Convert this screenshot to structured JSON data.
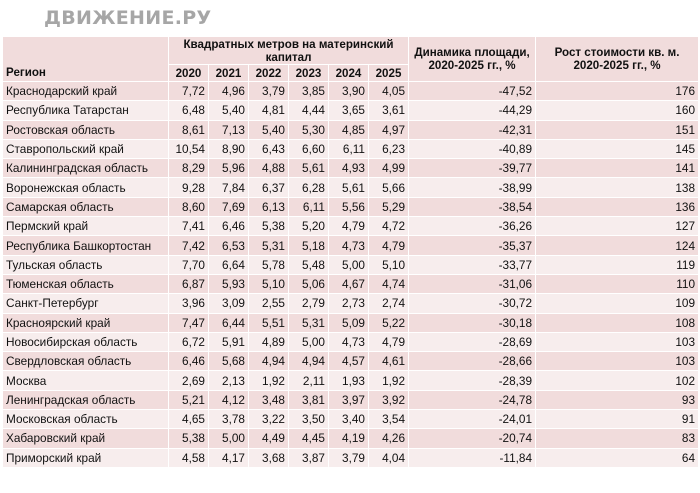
{
  "logo": "ДВИЖЕНИЕ.РУ",
  "table": {
    "headers": {
      "region": "Регион",
      "group": "Квадратных метров на материнский капитал",
      "years": [
        "2020",
        "2021",
        "2022",
        "2023",
        "2024",
        "2025"
      ],
      "dynamics": "Динамика площади, 2020-2025 гг., %",
      "growth": "Рост стоимости кв. м. 2020-2025 гг., %"
    },
    "rows": [
      {
        "region": "Краснодарский край",
        "values": [
          "7,72",
          "4,96",
          "3,79",
          "3,85",
          "3,90",
          "4,05"
        ],
        "dynamics": "-47,52",
        "growth": "176"
      },
      {
        "region": "Республика Татарстан",
        "values": [
          "6,48",
          "5,40",
          "4,81",
          "4,44",
          "3,65",
          "3,61"
        ],
        "dynamics": "-44,29",
        "growth": "160"
      },
      {
        "region": "Ростовская область",
        "values": [
          "8,61",
          "7,13",
          "5,40",
          "5,30",
          "4,85",
          "4,97"
        ],
        "dynamics": "-42,31",
        "growth": "151"
      },
      {
        "region": "Ставропольский край",
        "values": [
          "10,54",
          "8,90",
          "6,43",
          "6,60",
          "6,11",
          "6,23"
        ],
        "dynamics": "-40,89",
        "growth": "145"
      },
      {
        "region": "Калининградская область",
        "values": [
          "8,29",
          "5,96",
          "4,88",
          "5,61",
          "4,93",
          "4,99"
        ],
        "dynamics": "-39,77",
        "growth": "141"
      },
      {
        "region": "Воронежская область",
        "values": [
          "9,28",
          "7,84",
          "6,37",
          "6,28",
          "5,61",
          "5,66"
        ],
        "dynamics": "-38,99",
        "growth": "138"
      },
      {
        "region": "Самарская область",
        "values": [
          "8,60",
          "7,69",
          "6,13",
          "6,11",
          "5,56",
          "5,29"
        ],
        "dynamics": "-38,54",
        "growth": "136"
      },
      {
        "region": "Пермский край",
        "values": [
          "7,41",
          "6,46",
          "5,38",
          "5,20",
          "4,79",
          "4,72"
        ],
        "dynamics": "-36,26",
        "growth": "127"
      },
      {
        "region": "Республика Башкортостан",
        "values": [
          "7,42",
          "6,53",
          "5,31",
          "5,18",
          "4,73",
          "4,79"
        ],
        "dynamics": "-35,37",
        "growth": "124"
      },
      {
        "region": "Тульская область",
        "values": [
          "7,70",
          "6,64",
          "5,78",
          "5,48",
          "5,00",
          "5,10"
        ],
        "dynamics": "-33,77",
        "growth": "119"
      },
      {
        "region": "Тюменская область",
        "values": [
          "6,87",
          "5,93",
          "5,10",
          "5,06",
          "4,67",
          "4,74"
        ],
        "dynamics": "-31,06",
        "growth": "110"
      },
      {
        "region": "Санкт-Петербург",
        "values": [
          "3,96",
          "3,09",
          "2,55",
          "2,79",
          "2,73",
          "2,74"
        ],
        "dynamics": "-30,72",
        "growth": "109"
      },
      {
        "region": "Красноярский край",
        "values": [
          "7,47",
          "6,44",
          "5,51",
          "5,31",
          "5,09",
          "5,22"
        ],
        "dynamics": "-30,18",
        "growth": "108"
      },
      {
        "region": "Новосибирская область",
        "values": [
          "6,72",
          "5,91",
          "4,89",
          "5,00",
          "4,73",
          "4,79"
        ],
        "dynamics": "-28,69",
        "growth": "103"
      },
      {
        "region": "Свердловская область",
        "values": [
          "6,46",
          "5,68",
          "4,94",
          "4,94",
          "4,57",
          "4,61"
        ],
        "dynamics": "-28,66",
        "growth": "103"
      },
      {
        "region": "Москва",
        "values": [
          "2,69",
          "2,13",
          "1,92",
          "2,11",
          "1,93",
          "1,92"
        ],
        "dynamics": "-28,39",
        "growth": "102"
      },
      {
        "region": "Ленинградская область",
        "values": [
          "5,21",
          "4,12",
          "3,48",
          "3,81",
          "3,97",
          "3,92"
        ],
        "dynamics": "-24,78",
        "growth": "93"
      },
      {
        "region": "Московская область",
        "values": [
          "4,65",
          "3,78",
          "3,22",
          "3,50",
          "3,40",
          "3,54"
        ],
        "dynamics": "-24,01",
        "growth": "91"
      },
      {
        "region": "Хабаровский край",
        "values": [
          "5,38",
          "5,00",
          "4,49",
          "4,45",
          "4,19",
          "4,26"
        ],
        "dynamics": "-20,74",
        "growth": "83"
      },
      {
        "region": "Приморский край",
        "values": [
          "4,58",
          "4,17",
          "3,68",
          "3,87",
          "3,79",
          "4,04"
        ],
        "dynamics": "-11,84",
        "growth": "64"
      }
    ]
  }
}
